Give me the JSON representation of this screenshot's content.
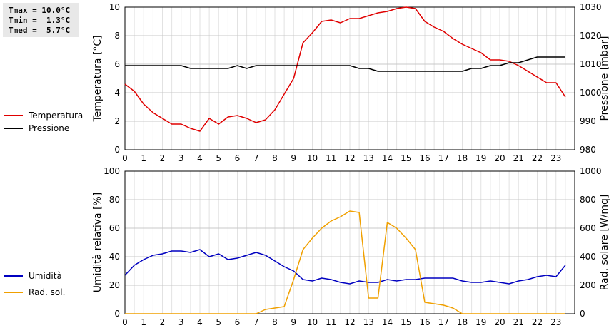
{
  "stats": {
    "tmax": "Tmax = 10.0°C",
    "tmin": "Tmin =  1.3°C",
    "tmed": "Tmed =  5.7°C"
  },
  "legend_top": [
    {
      "label": "Temperatura",
      "color": "#e00000"
    },
    {
      "label": "Pressione",
      "color": "#000000"
    }
  ],
  "legend_bottom": [
    {
      "label": "Umidità",
      "color": "#0000c0"
    },
    {
      "label": "Rad. sol.",
      "color": "#f0a000"
    }
  ],
  "chart_data": [
    {
      "type": "line",
      "x_ticks": [
        "0",
        "1",
        "2",
        "3",
        "4",
        "5",
        "6",
        "7",
        "8",
        "9",
        "10",
        "11",
        "12",
        "13",
        "14",
        "15",
        "16",
        "17",
        "18",
        "19",
        "20",
        "21",
        "22",
        "23"
      ],
      "xlim": [
        0,
        24
      ],
      "ylabel": "Temperatura [°C]",
      "ylim": [
        0,
        10
      ],
      "y_ticks": [
        "0",
        "2",
        "4",
        "6",
        "8",
        "10"
      ],
      "y2label": "Pressione [mbar]",
      "y2lim": [
        980,
        1030
      ],
      "y2_ticks": [
        "980",
        "990",
        "1000",
        "1010",
        "1020",
        "1030"
      ],
      "grid": true,
      "series": [
        {
          "name": "Temperatura",
          "color": "#e00000",
          "axis": "left",
          "x": [
            0,
            0.5,
            1,
            1.5,
            2,
            2.5,
            3,
            3.5,
            4,
            4.5,
            5,
            5.5,
            6,
            6.5,
            7,
            7.5,
            8,
            8.5,
            9,
            9.5,
            10,
            10.5,
            11,
            11.5,
            12,
            12.5,
            13,
            13.5,
            14,
            14.5,
            15,
            15.5,
            16,
            16.5,
            17,
            17.5,
            18,
            18.5,
            19,
            19.5,
            20,
            20.5,
            21,
            21.5,
            22,
            22.5,
            23,
            23.5
          ],
          "values": [
            4.6,
            4.1,
            3.2,
            2.6,
            2.2,
            1.8,
            1.8,
            1.5,
            1.3,
            2.2,
            1.8,
            2.3,
            2.4,
            2.2,
            1.9,
            2.1,
            2.8,
            3.9,
            5.0,
            7.5,
            8.2,
            9.0,
            9.1,
            8.9,
            9.2,
            9.2,
            9.4,
            9.6,
            9.7,
            9.9,
            10.0,
            9.9,
            9.0,
            8.6,
            8.3,
            7.8,
            7.4,
            7.1,
            6.8,
            6.3,
            6.3,
            6.2,
            5.9,
            5.5,
            5.1,
            4.7,
            4.7,
            3.7
          ]
        },
        {
          "name": "Pressione",
          "color": "#000000",
          "axis": "right",
          "x": [
            0,
            0.5,
            1,
            1.5,
            2,
            2.5,
            3,
            3.5,
            4,
            4.5,
            5,
            5.5,
            6,
            6.5,
            7,
            7.5,
            8,
            8.5,
            9,
            9.5,
            10,
            10.5,
            11,
            11.5,
            12,
            12.5,
            13,
            13.5,
            14,
            14.5,
            15,
            15.5,
            16,
            16.5,
            17,
            17.5,
            18,
            18.5,
            19,
            19.5,
            20,
            20.5,
            21,
            21.5,
            22,
            22.5,
            23,
            23.5
          ],
          "values": [
            1009.5,
            1009.5,
            1009.5,
            1009.5,
            1009.5,
            1009.5,
            1009.5,
            1008.5,
            1008.5,
            1008.5,
            1008.5,
            1008.5,
            1009.5,
            1008.5,
            1009.5,
            1009.5,
            1009.5,
            1009.5,
            1009.5,
            1009.5,
            1009.5,
            1009.5,
            1009.5,
            1009.5,
            1009.5,
            1008.5,
            1008.5,
            1007.5,
            1007.5,
            1007.5,
            1007.5,
            1007.5,
            1007.5,
            1007.5,
            1007.5,
            1007.5,
            1007.5,
            1008.5,
            1008.5,
            1009.5,
            1009.5,
            1010.5,
            1010.5,
            1011.5,
            1012.5,
            1012.5,
            1012.5,
            1012.5
          ]
        }
      ]
    },
    {
      "type": "line",
      "x_ticks": [
        "0",
        "1",
        "2",
        "3",
        "4",
        "5",
        "6",
        "7",
        "8",
        "9",
        "10",
        "11",
        "12",
        "13",
        "14",
        "15",
        "16",
        "17",
        "18",
        "19",
        "20",
        "21",
        "22",
        "23"
      ],
      "xlim": [
        0,
        24
      ],
      "ylabel": "Umidità relativa [%]",
      "ylim": [
        0,
        100
      ],
      "y_ticks": [
        "0",
        "20",
        "40",
        "60",
        "80",
        "100"
      ],
      "y2label": "Rad. solare [W/mq]",
      "y2lim": [
        0,
        1000
      ],
      "y2_ticks": [
        "0",
        "200",
        "400",
        "600",
        "800",
        "1000"
      ],
      "grid": true,
      "series": [
        {
          "name": "Umidità",
          "color": "#0000c0",
          "axis": "left",
          "x": [
            0,
            0.5,
            1,
            1.5,
            2,
            2.5,
            3,
            3.5,
            4,
            4.5,
            5,
            5.5,
            6,
            6.5,
            7,
            7.5,
            8,
            8.5,
            9,
            9.5,
            10,
            10.5,
            11,
            11.5,
            12,
            12.5,
            13,
            13.5,
            14,
            14.5,
            15,
            15.5,
            16,
            16.5,
            17,
            17.5,
            18,
            18.5,
            19,
            19.5,
            20,
            20.5,
            21,
            21.5,
            22,
            22.5,
            23,
            23.5
          ],
          "values": [
            27,
            34,
            38,
            41,
            42,
            44,
            44,
            43,
            45,
            40,
            42,
            38,
            39,
            41,
            43,
            41,
            37,
            33,
            30,
            24,
            23,
            25,
            24,
            22,
            21,
            23,
            22,
            22,
            24,
            23,
            24,
            24,
            25,
            25,
            25,
            25,
            23,
            22,
            22,
            23,
            22,
            21,
            23,
            24,
            26,
            27,
            26,
            34
          ]
        },
        {
          "name": "Rad. sol.",
          "color": "#f0a000",
          "axis": "right",
          "x": [
            0,
            1,
            2,
            3,
            4,
            5,
            6,
            7,
            7.5,
            8,
            8.5,
            9,
            9.5,
            10,
            10.5,
            11,
            11.5,
            12,
            12.5,
            13,
            13.5,
            14,
            14.5,
            15,
            15.5,
            16,
            16.5,
            17,
            17.5,
            18,
            19,
            20,
            21,
            22,
            23,
            23.5
          ],
          "values": [
            0,
            0,
            0,
            0,
            0,
            0,
            0,
            0,
            30,
            40,
            50,
            240,
            450,
            530,
            600,
            650,
            680,
            720,
            710,
            110,
            110,
            640,
            600,
            530,
            450,
            80,
            70,
            60,
            40,
            0,
            0,
            0,
            0,
            0,
            0,
            0
          ]
        }
      ]
    }
  ]
}
